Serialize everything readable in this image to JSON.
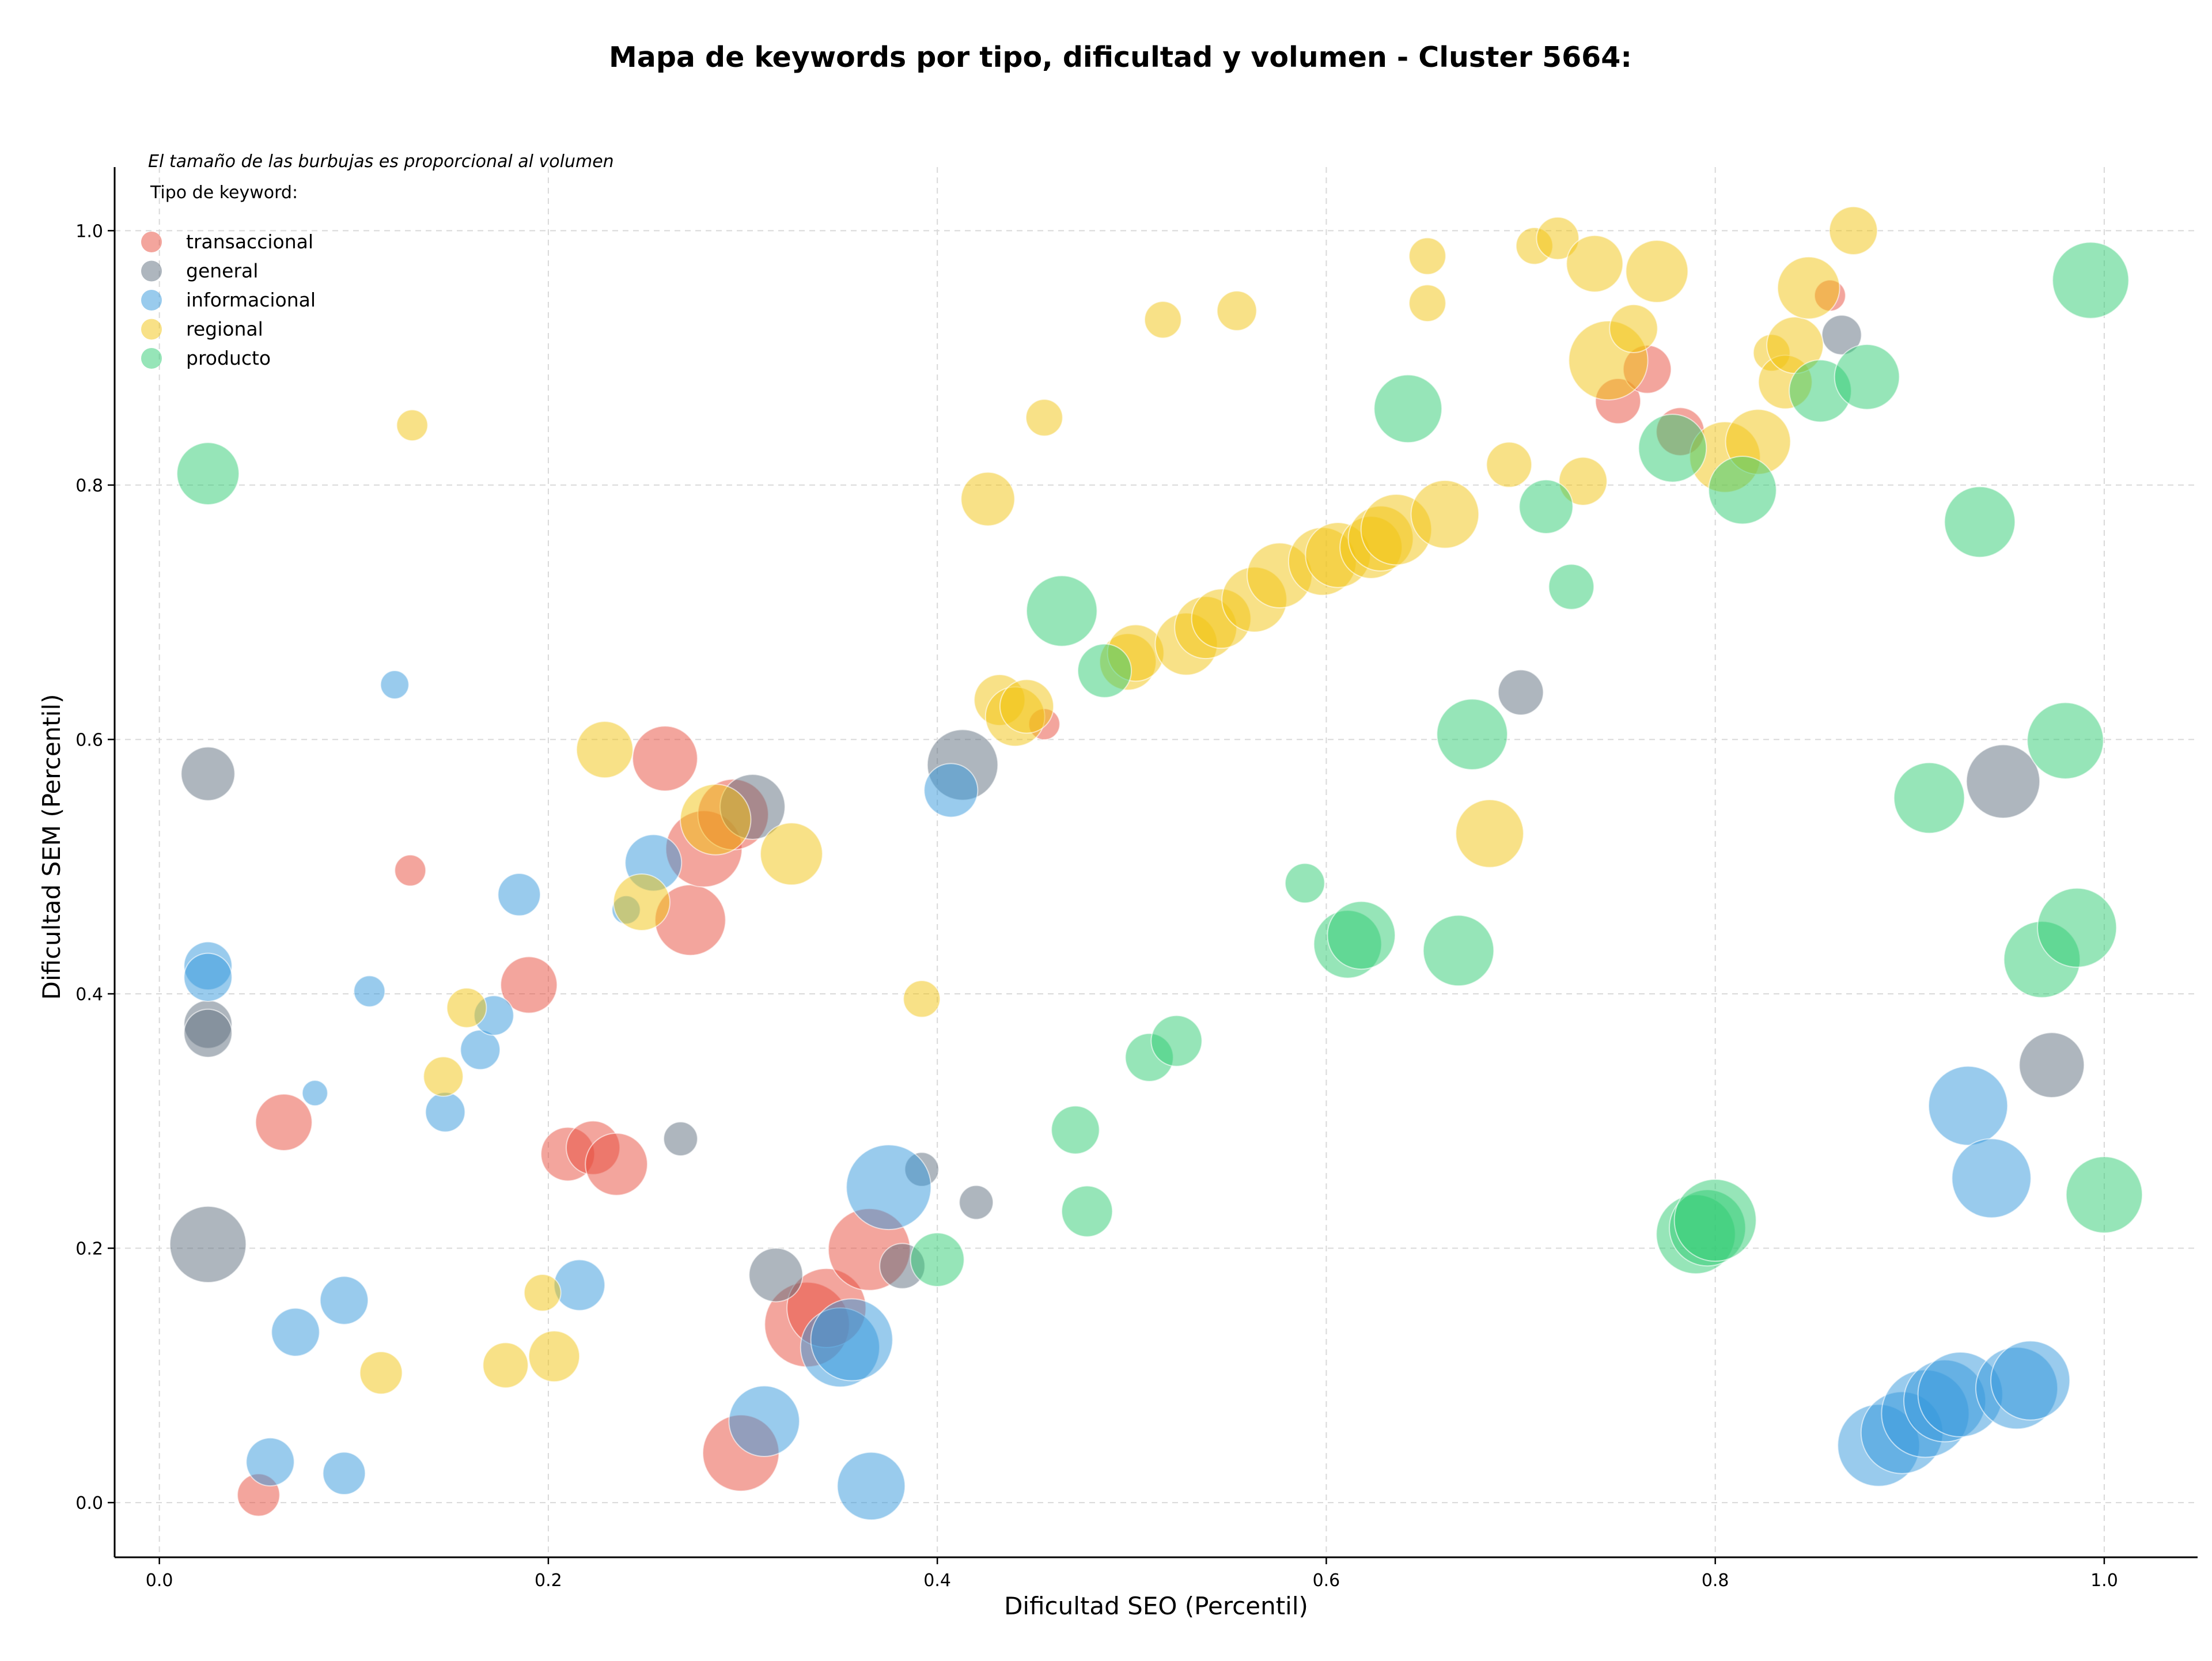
{
  "chart_data": {
    "type": "scatter",
    "title": "Mapa de keywords por tipo, dificultad y volumen - Cluster 5664:",
    "subtitle": "El tamaño de las burbujas es proporcional al volumen",
    "xlabel": "Dificultad SEO (Percentil)",
    "ylabel": "Dificultad SEM (Percentil)",
    "xlim": [
      -0.023,
      1.048
    ],
    "ylim": [
      -0.043,
      1.05
    ],
    "xticks": [
      "0.0",
      "0.2",
      "0.4",
      "0.6",
      "0.8",
      "1.0"
    ],
    "yticks": [
      "0.0",
      "0.2",
      "0.4",
      "0.6",
      "0.8",
      "1.0"
    ],
    "grid": true,
    "legend_title": "Tipo de keyword:",
    "legend_position": "top-left",
    "series": [
      {
        "name": "transaccional",
        "color": "#e74c3c",
        "points": [
          [
            0.051,
            0.006,
            15
          ],
          [
            0.064,
            0.299,
            20
          ],
          [
            0.129,
            0.497,
            11
          ],
          [
            0.19,
            0.407,
            20
          ],
          [
            0.21,
            0.274,
            19
          ],
          [
            0.223,
            0.279,
            19
          ],
          [
            0.235,
            0.266,
            22
          ],
          [
            0.26,
            0.585,
            23
          ],
          [
            0.273,
            0.458,
            25
          ],
          [
            0.28,
            0.514,
            27
          ],
          [
            0.295,
            0.541,
            25
          ],
          [
            0.299,
            0.039,
            27
          ],
          [
            0.333,
            0.14,
            30
          ],
          [
            0.343,
            0.153,
            28
          ],
          [
            0.365,
            0.199,
            29
          ],
          [
            0.455,
            0.612,
            11
          ],
          [
            0.75,
            0.866,
            16
          ],
          [
            0.765,
            0.891,
            17
          ],
          [
            0.782,
            0.842,
            17
          ],
          [
            0.859,
            0.949,
            11
          ]
        ]
      },
      {
        "name": "general",
        "color": "#5d6d7e",
        "points": [
          [
            0.025,
            0.573,
            19
          ],
          [
            0.025,
            0.376,
            17
          ],
          [
            0.025,
            0.369,
            17
          ],
          [
            0.025,
            0.203,
            27
          ],
          [
            0.268,
            0.286,
            12
          ],
          [
            0.305,
            0.547,
            23
          ],
          [
            0.317,
            0.179,
            19
          ],
          [
            0.382,
            0.186,
            16
          ],
          [
            0.392,
            0.262,
            12
          ],
          [
            0.42,
            0.236,
            12
          ],
          [
            0.413,
            0.58,
            25
          ],
          [
            0.7,
            0.637,
            16
          ],
          [
            0.865,
            0.918,
            14
          ],
          [
            0.948,
            0.567,
            26
          ],
          [
            0.973,
            0.344,
            23
          ]
        ]
      },
      {
        "name": "informacional",
        "color": "#3498db",
        "points": [
          [
            0.025,
            0.422,
            17
          ],
          [
            0.025,
            0.413,
            17
          ],
          [
            0.057,
            0.032,
            17
          ],
          [
            0.07,
            0.134,
            17
          ],
          [
            0.08,
            0.322,
            9
          ],
          [
            0.095,
            0.159,
            17
          ],
          [
            0.095,
            0.023,
            15
          ],
          [
            0.108,
            0.402,
            11
          ],
          [
            0.121,
            0.643,
            10
          ],
          [
            0.147,
            0.307,
            14
          ],
          [
            0.165,
            0.356,
            14
          ],
          [
            0.172,
            0.383,
            14
          ],
          [
            0.185,
            0.478,
            15
          ],
          [
            0.216,
            0.171,
            18
          ],
          [
            0.24,
            0.466,
            10
          ],
          [
            0.254,
            0.503,
            20
          ],
          [
            0.311,
            0.064,
            25
          ],
          [
            0.35,
            0.122,
            28
          ],
          [
            0.356,
            0.128,
            29
          ],
          [
            0.366,
            0.013,
            24
          ],
          [
            0.375,
            0.248,
            30
          ],
          [
            0.407,
            0.56,
            19
          ],
          [
            0.884,
            0.045,
            29
          ],
          [
            0.896,
            0.055,
            29
          ],
          [
            0.908,
            0.07,
            31
          ],
          [
            0.918,
            0.08,
            29
          ],
          [
            0.926,
            0.085,
            30
          ],
          [
            0.93,
            0.312,
            28
          ],
          [
            0.942,
            0.255,
            28
          ],
          [
            0.955,
            0.09,
            29
          ],
          [
            0.962,
            0.096,
            28
          ]
        ]
      },
      {
        "name": "regional",
        "color": "#f1c40f",
        "points": [
          [
            0.114,
            0.102,
            15
          ],
          [
            0.13,
            0.847,
            11
          ],
          [
            0.146,
            0.335,
            14
          ],
          [
            0.158,
            0.389,
            14
          ],
          [
            0.178,
            0.108,
            16
          ],
          [
            0.197,
            0.165,
            13
          ],
          [
            0.203,
            0.115,
            18
          ],
          [
            0.229,
            0.592,
            20
          ],
          [
            0.248,
            0.472,
            20
          ],
          [
            0.286,
            0.537,
            25
          ],
          [
            0.325,
            0.51,
            22
          ],
          [
            0.392,
            0.396,
            13
          ],
          [
            0.426,
            0.789,
            19
          ],
          [
            0.432,
            0.631,
            18
          ],
          [
            0.44,
            0.618,
            21
          ],
          [
            0.446,
            0.626,
            19
          ],
          [
            0.455,
            0.853,
            13
          ],
          [
            0.498,
            0.661,
            20
          ],
          [
            0.502,
            0.668,
            20
          ],
          [
            0.516,
            0.93,
            13
          ],
          [
            0.528,
            0.675,
            22
          ],
          [
            0.538,
            0.688,
            22
          ],
          [
            0.546,
            0.695,
            21
          ],
          [
            0.554,
            0.937,
            14
          ],
          [
            0.563,
            0.71,
            23
          ],
          [
            0.576,
            0.729,
            23
          ],
          [
            0.598,
            0.74,
            24
          ],
          [
            0.606,
            0.745,
            23
          ],
          [
            0.623,
            0.751,
            22
          ],
          [
            0.628,
            0.758,
            23
          ],
          [
            0.636,
            0.765,
            25
          ],
          [
            0.652,
            0.98,
            13
          ],
          [
            0.652,
            0.943,
            13
          ],
          [
            0.661,
            0.777,
            24
          ],
          [
            0.684,
            0.526,
            24
          ],
          [
            0.694,
            0.816,
            16
          ],
          [
            0.707,
            0.988,
            13
          ],
          [
            0.719,
            0.994,
            15
          ],
          [
            0.732,
            0.803,
            17
          ],
          [
            0.738,
            0.974,
            20
          ],
          [
            0.745,
            0.898,
            28
          ],
          [
            0.758,
            0.923,
            17
          ],
          [
            0.77,
            0.968,
            22
          ],
          [
            0.805,
            0.822,
            25
          ],
          [
            0.822,
            0.834,
            23
          ],
          [
            0.829,
            0.904,
            13
          ],
          [
            0.836,
            0.881,
            19
          ],
          [
            0.841,
            0.91,
            20
          ],
          [
            0.848,
            0.955,
            22
          ],
          [
            0.871,
            1.0,
            17
          ]
        ]
      },
      {
        "name": "producto",
        "color": "#2ecc71",
        "points": [
          [
            0.025,
            0.809,
            22
          ],
          [
            0.4,
            0.191,
            19
          ],
          [
            0.464,
            0.701,
            25
          ],
          [
            0.471,
            0.293,
            17
          ],
          [
            0.477,
            0.229,
            18
          ],
          [
            0.486,
            0.654,
            19
          ],
          [
            0.509,
            0.35,
            17
          ],
          [
            0.523,
            0.363,
            18
          ],
          [
            0.589,
            0.487,
            14
          ],
          [
            0.611,
            0.439,
            24
          ],
          [
            0.618,
            0.446,
            24
          ],
          [
            0.642,
            0.86,
            24
          ],
          [
            0.668,
            0.434,
            25
          ],
          [
            0.675,
            0.604,
            25
          ],
          [
            0.713,
            0.783,
            19
          ],
          [
            0.726,
            0.72,
            16
          ],
          [
            0.778,
            0.829,
            24
          ],
          [
            0.79,
            0.211,
            28
          ],
          [
            0.796,
            0.216,
            27
          ],
          [
            0.8,
            0.222,
            29
          ],
          [
            0.814,
            0.796,
            24
          ],
          [
            0.854,
            0.874,
            22
          ],
          [
            0.878,
            0.885,
            23
          ],
          [
            0.91,
            0.554,
            25
          ],
          [
            0.936,
            0.771,
            25
          ],
          [
            0.968,
            0.427,
            27
          ],
          [
            0.98,
            0.599,
            27
          ],
          [
            0.986,
            0.452,
            28
          ],
          [
            0.993,
            0.961,
            27
          ],
          [
            1.0,
            0.242,
            27
          ]
        ]
      }
    ]
  }
}
